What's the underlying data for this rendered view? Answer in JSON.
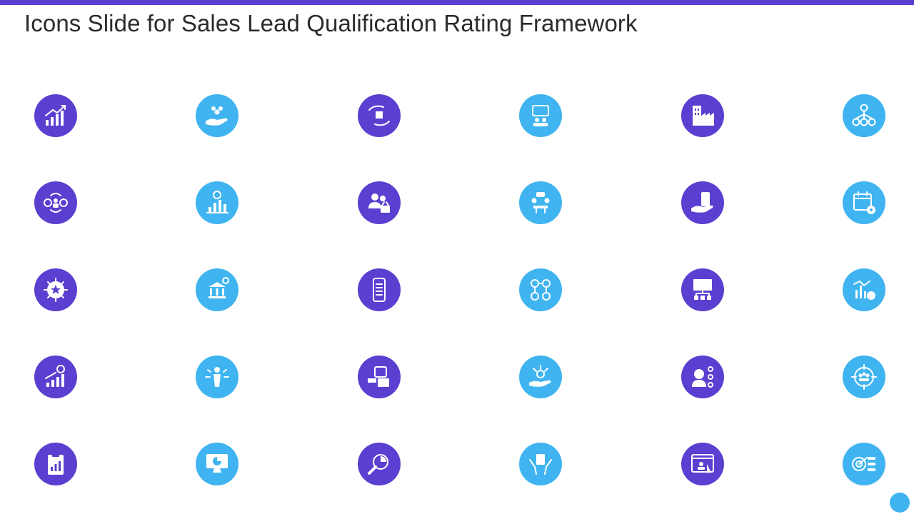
{
  "slide": {
    "title": "Icons Slide for Sales Lead Qualification Rating Framework"
  },
  "colors": {
    "purple": "#5b3fd0",
    "blue": "#3fb4f0",
    "title_text": "#2b2b2b",
    "top_bar": "#5b3fd0",
    "corner_dot": "#3fb4f0"
  },
  "icons": [
    {
      "name": "growth-chart-icon",
      "color": "purple"
    },
    {
      "name": "hand-holding-team-icon",
      "color": "blue"
    },
    {
      "name": "hands-exchange-box-icon",
      "color": "purple"
    },
    {
      "name": "team-meeting-board-icon",
      "color": "blue"
    },
    {
      "name": "factory-building-icon",
      "color": "purple"
    },
    {
      "name": "organization-network-icon",
      "color": "blue"
    },
    {
      "name": "money-person-cycle-icon",
      "color": "purple"
    },
    {
      "name": "bar-chart-dollar-icon",
      "color": "blue"
    },
    {
      "name": "users-basket-icon",
      "color": "purple"
    },
    {
      "name": "meeting-table-icon",
      "color": "blue"
    },
    {
      "name": "hand-holding-phone-icon",
      "color": "purple"
    },
    {
      "name": "calendar-gear-icon",
      "color": "blue"
    },
    {
      "name": "gear-star-icon",
      "color": "purple"
    },
    {
      "name": "bank-dollar-icon",
      "color": "blue"
    },
    {
      "name": "smartphone-list-icon",
      "color": "purple"
    },
    {
      "name": "people-network-icon",
      "color": "blue"
    },
    {
      "name": "presentation-hierarchy-icon",
      "color": "purple"
    },
    {
      "name": "analytics-clock-icon",
      "color": "blue"
    },
    {
      "name": "rising-bars-dollar-icon",
      "color": "purple"
    },
    {
      "name": "person-arrows-icon",
      "color": "blue"
    },
    {
      "name": "contact-card-mail-icon",
      "color": "purple"
    },
    {
      "name": "hand-person-arrows-icon",
      "color": "blue"
    },
    {
      "name": "woman-contacts-icon",
      "color": "purple"
    },
    {
      "name": "target-team-icon",
      "color": "blue"
    },
    {
      "name": "clipboard-chart-icon",
      "color": "purple"
    },
    {
      "name": "monitor-pie-chart-icon",
      "color": "blue"
    },
    {
      "name": "magnifier-chart-icon",
      "color": "purple"
    },
    {
      "name": "hands-document-icon",
      "color": "blue"
    },
    {
      "name": "browser-user-click-icon",
      "color": "purple"
    },
    {
      "name": "target-list-icon",
      "color": "blue"
    }
  ]
}
